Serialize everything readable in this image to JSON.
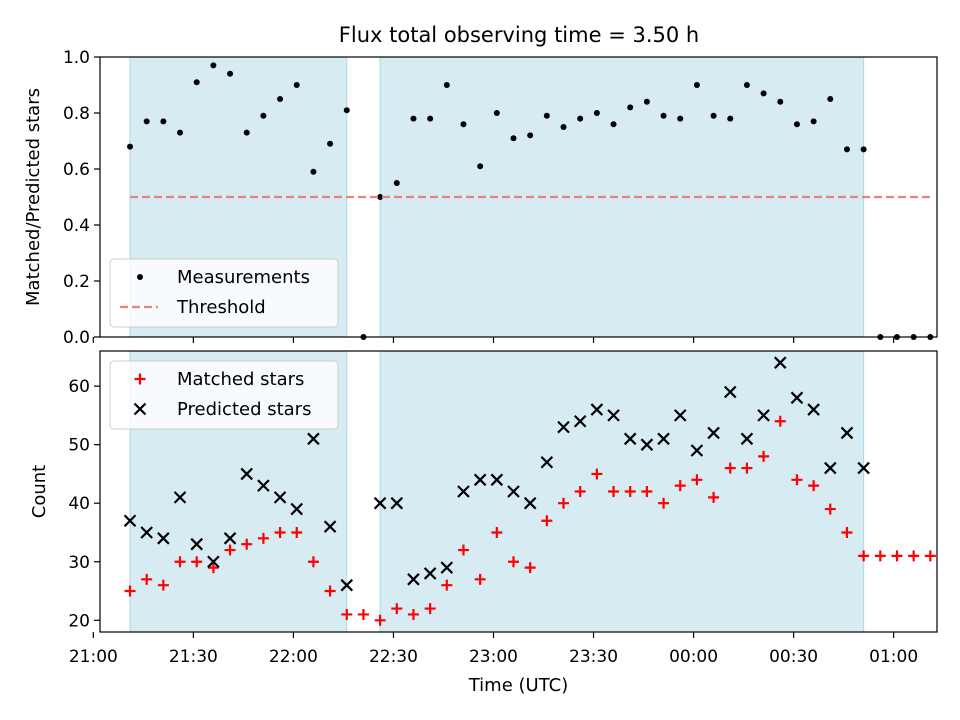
{
  "title": "Flux total observing time = 3.50 h",
  "chart_data": [
    {
      "type": "scatter",
      "panel": "top",
      "ylabel": "Matched/Predicted stars",
      "ylim": [
        0,
        1.0
      ],
      "yticks": [
        0.0,
        0.2,
        0.4,
        0.6,
        0.8,
        1.0
      ],
      "ytick_labels": [
        "0.0",
        "0.2",
        "0.4",
        "0.6",
        "0.8",
        "1.0"
      ],
      "x_range": [
        "21:02",
        "01:13"
      ],
      "legend": {
        "placement": "lower-left"
      },
      "observing_windows": [
        [
          "21:11",
          "22:16"
        ],
        [
          "22:26",
          "00:51"
        ]
      ],
      "series": [
        {
          "name": "Measurements",
          "marker": "dot",
          "color": "#000000",
          "x": [
            "21:11",
            "21:16",
            "21:21",
            "21:26",
            "21:31",
            "21:36",
            "21:41",
            "21:46",
            "21:51",
            "21:56",
            "22:01",
            "22:06",
            "22:11",
            "22:16",
            "22:21",
            "22:26",
            "22:31",
            "22:36",
            "22:41",
            "22:46",
            "22:51",
            "22:56",
            "23:01",
            "23:06",
            "23:11",
            "23:16",
            "23:21",
            "23:26",
            "23:31",
            "23:36",
            "23:41",
            "23:46",
            "23:51",
            "23:56",
            "00:01",
            "00:06",
            "00:11",
            "00:16",
            "00:21",
            "00:26",
            "00:31",
            "00:36",
            "00:41",
            "00:46",
            "00:51",
            "00:56",
            "01:01",
            "01:06",
            "01:11"
          ],
          "y": [
            0.68,
            0.77,
            0.77,
            0.73,
            0.91,
            0.97,
            0.94,
            0.73,
            0.79,
            0.85,
            0.9,
            0.59,
            0.69,
            0.81,
            0.0,
            0.5,
            0.55,
            0.78,
            0.78,
            0.9,
            0.76,
            0.61,
            0.8,
            0.71,
            0.72,
            0.79,
            0.75,
            0.78,
            0.8,
            0.76,
            0.82,
            0.84,
            0.79,
            0.78,
            0.9,
            0.79,
            0.78,
            0.9,
            0.87,
            0.84,
            0.76,
            0.77,
            0.85,
            0.67,
            0.67,
            0.0,
            0.0,
            0.0,
            0.0
          ]
        },
        {
          "name": "Threshold",
          "style": "dashed",
          "color": "#f08080",
          "x": [
            "21:11",
            "01:11"
          ],
          "y": [
            0.5,
            0.5
          ]
        }
      ]
    },
    {
      "type": "scatter",
      "panel": "bottom",
      "ylabel": "Count",
      "xlabel": "Time (UTC)",
      "ylim": [
        18,
        66
      ],
      "yticks": [
        20,
        30,
        40,
        50,
        60
      ],
      "ytick_labels": [
        "20",
        "30",
        "40",
        "50",
        "60"
      ],
      "x_range": [
        "21:02",
        "01:13"
      ],
      "xticks": [
        "21:00",
        "21:30",
        "22:00",
        "22:30",
        "23:00",
        "23:30",
        "00:00",
        "00:30",
        "01:00"
      ],
      "xtick_labels": [
        "21:00",
        "21:30",
        "22:00",
        "22:30",
        "23:00",
        "23:30",
        "00:00",
        "00:30",
        "01:00"
      ],
      "legend": {
        "placement": "top-left"
      },
      "observing_windows": [
        [
          "21:11",
          "22:16"
        ],
        [
          "22:26",
          "00:51"
        ]
      ],
      "series": [
        {
          "name": "Matched stars",
          "marker": "plus",
          "color": "#ff0000",
          "x": [
            "21:11",
            "21:16",
            "21:21",
            "21:26",
            "21:31",
            "21:36",
            "21:41",
            "21:46",
            "21:51",
            "21:56",
            "22:01",
            "22:06",
            "22:11",
            "22:16",
            "22:21",
            "22:26",
            "22:31",
            "22:36",
            "22:41",
            "22:46",
            "22:51",
            "22:56",
            "23:01",
            "23:06",
            "23:11",
            "23:16",
            "23:21",
            "23:26",
            "23:31",
            "23:36",
            "23:41",
            "23:46",
            "23:51",
            "23:56",
            "00:01",
            "00:06",
            "00:11",
            "00:16",
            "00:21",
            "00:26",
            "00:31",
            "00:36",
            "00:41",
            "00:46",
            "00:51",
            "00:56",
            "01:01",
            "01:06",
            "01:11"
          ],
          "y": [
            25,
            27,
            26,
            30,
            30,
            29,
            32,
            33,
            34,
            35,
            35,
            30,
            25,
            21,
            21,
            20,
            22,
            21,
            22,
            26,
            32,
            27,
            35,
            30,
            29,
            37,
            40,
            42,
            45,
            42,
            42,
            42,
            40,
            43,
            44,
            41,
            46,
            46,
            48,
            54,
            44,
            43,
            39,
            35,
            31,
            31,
            31,
            31,
            31
          ]
        },
        {
          "name": "Predicted stars",
          "marker": "x",
          "color": "#000000",
          "x": [
            "21:11",
            "21:16",
            "21:21",
            "21:26",
            "21:31",
            "21:36",
            "21:41",
            "21:46",
            "21:51",
            "21:56",
            "22:01",
            "22:06",
            "22:11",
            "22:16",
            "22:26",
            "22:31",
            "22:36",
            "22:41",
            "22:46",
            "22:51",
            "22:56",
            "23:01",
            "23:06",
            "23:11",
            "23:16",
            "23:21",
            "23:26",
            "23:31",
            "23:36",
            "23:41",
            "23:46",
            "23:51",
            "23:56",
            "00:01",
            "00:06",
            "00:11",
            "00:16",
            "00:21",
            "00:26",
            "00:31",
            "00:36",
            "00:41",
            "00:46",
            "00:51"
          ],
          "y": [
            37,
            35,
            34,
            41,
            33,
            30,
            34,
            45,
            43,
            41,
            39,
            51,
            36,
            26,
            40,
            40,
            27,
            28,
            29,
            42,
            44,
            44,
            42,
            40,
            47,
            53,
            54,
            56,
            55,
            51,
            50,
            51,
            55,
            49,
            52,
            59,
            51,
            55,
            64,
            58,
            56,
            46,
            52,
            46
          ]
        }
      ]
    }
  ]
}
